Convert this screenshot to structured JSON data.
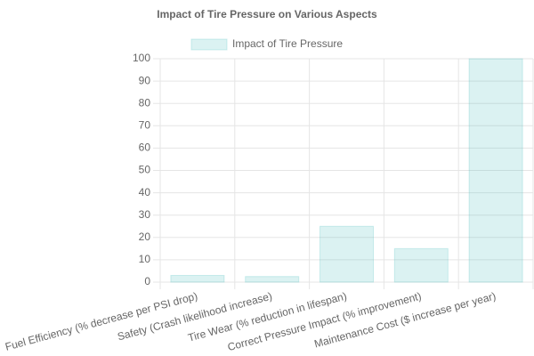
{
  "chart_data": {
    "type": "bar",
    "title": "Impact of Tire Pressure on Various Aspects",
    "categories": [
      "Fuel Efficiency (% decrease per PSI drop)",
      "Safety (Crash likelihood increase)",
      "Tire Wear (% reduction in lifespan)",
      "Correct Pressure Impact (% improvement)",
      "Maintenance Cost ($ increase per year)"
    ],
    "series": [
      {
        "name": "Impact of Tire Pressure",
        "color": "rgba(75,192,192,0.2)",
        "values": [
          3,
          2.5,
          25,
          15,
          100
        ]
      }
    ],
    "ylim": [
      0,
      100
    ],
    "yticks": [
      0,
      10,
      20,
      30,
      40,
      50,
      60,
      70,
      80,
      90,
      100
    ],
    "grid": true
  }
}
